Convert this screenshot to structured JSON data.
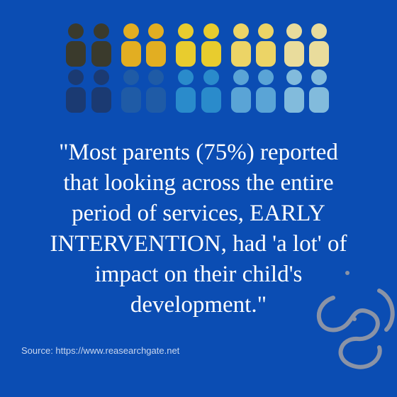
{
  "quote": {
    "lines": [
      "\"Most parents (75%) reported",
      "that looking across the entire",
      "period of services, EARLY",
      "INTERVENTION, had 'a lot' of",
      "impact on their child's",
      "development.\""
    ]
  },
  "source": "Source: https://www.reasearchgate.net"
}
